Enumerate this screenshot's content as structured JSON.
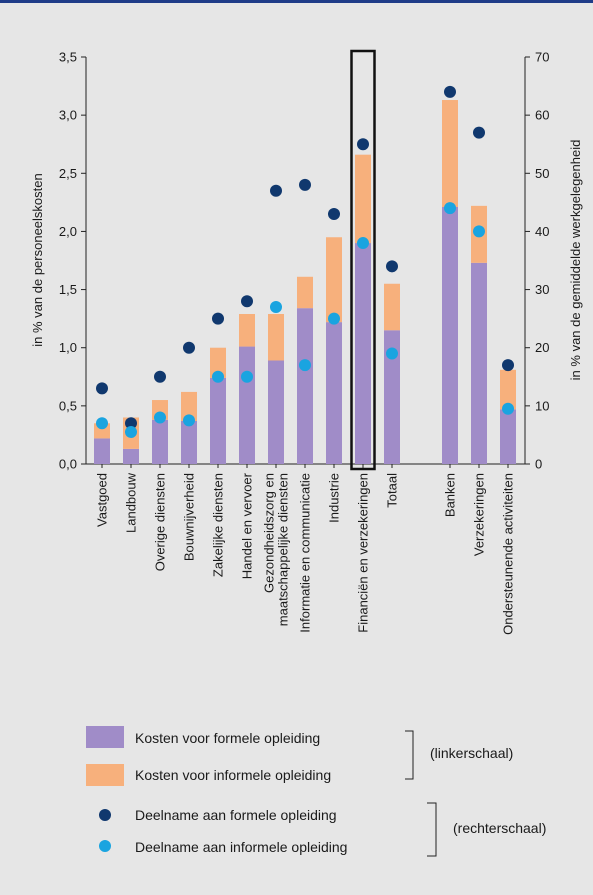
{
  "chart_data": {
    "type": "bar",
    "categories": [
      "Vastgoed",
      "Landbouw",
      "Overige diensten",
      "Bouwnijverheid",
      "Zakelijke diensten",
      "Handel en vervoer",
      "Gezondheidszorg en maatschappelijke diensten",
      "Informatie en communicatie",
      "Industrie",
      "Financiën en verzekeringen",
      "Totaal",
      "Banken",
      "Verzekeringen",
      "Ondersteunende activiteiten"
    ],
    "category_lines": [
      [
        "Vastgoed"
      ],
      [
        "Landbouw"
      ],
      [
        "Overige diensten"
      ],
      [
        "Bouwnijverheid"
      ],
      [
        "Zakelijke diensten"
      ],
      [
        "Handel en vervoer"
      ],
      [
        "Gezondheidszorg en",
        "maatschappelijke diensten"
      ],
      [
        "Informatie en communicatie"
      ],
      [
        "Industrie"
      ],
      [
        "Financiën en verzekeringen"
      ],
      [
        "Totaal"
      ],
      [
        "Banken"
      ],
      [
        "Verzekeringen"
      ],
      [
        "Ondersteunende activiteiten"
      ]
    ],
    "series": [
      {
        "name": "Kosten voor formele opleiding",
        "axis": "left",
        "kind": "bar",
        "color": "#a08cc8",
        "values": [
          0.22,
          0.13,
          0.38,
          0.37,
          0.74,
          1.01,
          0.89,
          1.34,
          1.22,
          1.9,
          1.15,
          2.21,
          1.73,
          0.47
        ]
      },
      {
        "name": "Kosten voor informele opleiding",
        "axis": "left",
        "kind": "bar",
        "color": "#f7b07c",
        "values": [
          0.13,
          0.27,
          0.17,
          0.25,
          0.26,
          0.28,
          0.4,
          0.27,
          0.73,
          0.76,
          0.4,
          0.92,
          0.49,
          0.34
        ]
      },
      {
        "name": "Deelname aan formele opleiding",
        "axis": "right",
        "kind": "dot",
        "color": "#10386e",
        "values": [
          13,
          7,
          15,
          20,
          25,
          28,
          47,
          48,
          43,
          55,
          34,
          64,
          57,
          17
        ]
      },
      {
        "name": "Deelname aan informele opleiding",
        "axis": "right",
        "kind": "dot",
        "color": "#1aa4e0",
        "values": [
          7,
          5.5,
          8,
          7.5,
          15,
          15,
          27,
          17,
          25,
          38,
          19,
          44,
          40,
          9.5
        ]
      }
    ],
    "ylabel_left": "in % van de personeelskosten",
    "ylabel_right": "in % van de gemiddelde werkgelegenheid",
    "ylim_left": [
      0,
      3.5
    ],
    "ylim_right": [
      0,
      70
    ],
    "yticks_left": [
      "0,0",
      "0,5",
      "1,0",
      "1,5",
      "2,0",
      "2,5",
      "3,0",
      "3,5"
    ],
    "yticks_right": [
      "0",
      "10",
      "20",
      "30",
      "40",
      "50",
      "60",
      "70"
    ],
    "highlight_category": "Financiën en verzekeringen",
    "grid": false
  },
  "legend": {
    "formal_cost": "Kosten voor formele opleiding",
    "informal_cost": "Kosten voor informele opleiding",
    "formal_part": "Deelname aan formele opleiding",
    "informal_part": "Deelname aan informele opleiding",
    "left_scale": "(linkerschaal)",
    "right_scale": "(rechterschaal)"
  }
}
